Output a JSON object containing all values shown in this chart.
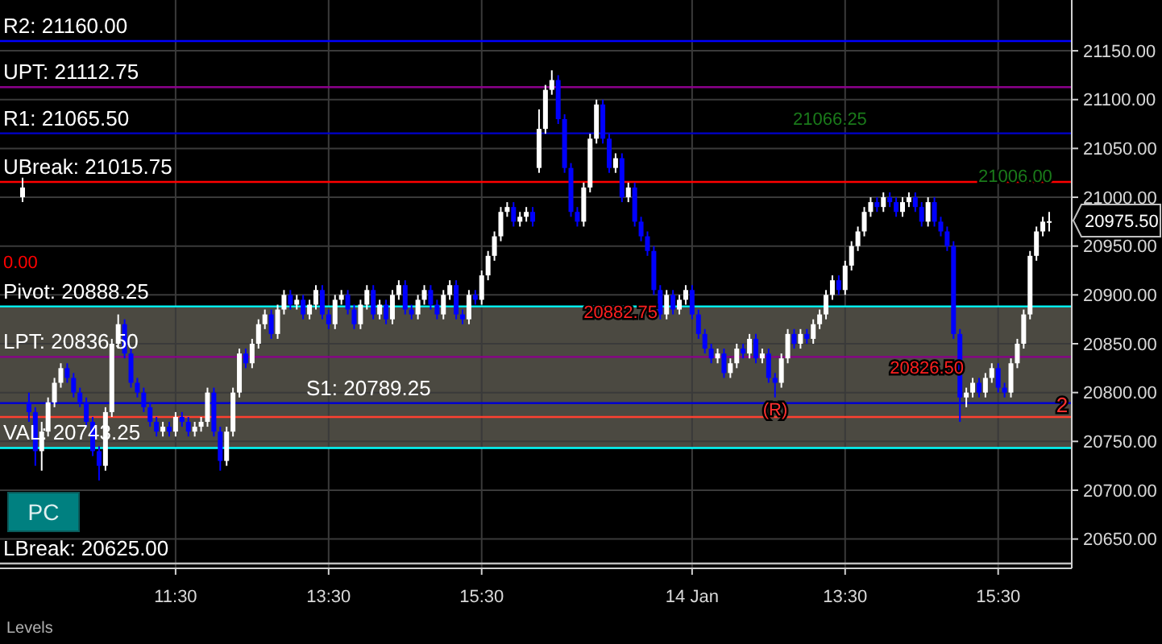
{
  "chart_data": {
    "type": "candlestick",
    "categories": [
      null,
      null,
      null,
      null,
      null,
      null,
      null,
      null,
      null,
      null,
      null,
      null,
      null,
      null,
      null,
      null,
      null,
      null,
      null,
      null,
      null,
      null,
      null,
      null,
      "11:30",
      null,
      null,
      null,
      null,
      null,
      null,
      null,
      null,
      null,
      null,
      null,
      null,
      null,
      null,
      null,
      null,
      null,
      null,
      null,
      null,
      null,
      null,
      null,
      "13:30",
      null,
      null,
      null,
      null,
      null,
      null,
      null,
      null,
      null,
      null,
      null,
      null,
      null,
      null,
      null,
      null,
      null,
      null,
      null,
      null,
      null,
      null,
      null,
      "15:30",
      null,
      null,
      null,
      null,
      null,
      null,
      null,
      null,
      null,
      null,
      null,
      null,
      null,
      null,
      null,
      null,
      null,
      null,
      null,
      null,
      null,
      null,
      null,
      null,
      null,
      null,
      null,
      null,
      null,
      null,
      null,
      null,
      "14 Jan",
      null,
      null,
      null,
      null,
      null,
      null,
      null,
      null,
      null,
      null,
      null,
      null,
      null,
      null,
      null,
      null,
      null,
      null,
      null,
      null,
      null,
      null,
      null,
      "13:30",
      null,
      null,
      null,
      null,
      null,
      null,
      null,
      null,
      null,
      null,
      null,
      null,
      null,
      null,
      null,
      null,
      null,
      null,
      null,
      null,
      null,
      null,
      null,
      "15:30",
      null,
      null,
      null,
      null,
      null,
      null,
      null,
      null
    ],
    "ohlc": [
      [
        21000,
        21020,
        20995,
        21010
      ],
      [
        20790,
        20800,
        20770,
        20780
      ],
      [
        20780,
        20785,
        20725,
        20740
      ],
      [
        20740,
        20770,
        20720,
        20760
      ],
      [
        20760,
        20795,
        20755,
        20790
      ],
      [
        20790,
        20815,
        20785,
        20810
      ],
      [
        20810,
        20830,
        20805,
        20825
      ],
      [
        20825,
        20830,
        20810,
        20815
      ],
      [
        20815,
        20820,
        20795,
        20800
      ],
      [
        20800,
        20805,
        20785,
        20790
      ],
      [
        20790,
        20795,
        20765,
        20770
      ],
      [
        20770,
        20775,
        20735,
        20740
      ],
      [
        20740,
        20745,
        20710,
        20725
      ],
      [
        20725,
        20785,
        20720,
        20780
      ],
      [
        20780,
        20855,
        20775,
        20850
      ],
      [
        20850,
        20880,
        20845,
        20870
      ],
      [
        20870,
        20875,
        20835,
        20840
      ],
      [
        20840,
        20845,
        20805,
        20810
      ],
      [
        20810,
        20815,
        20795,
        20800
      ],
      [
        20800,
        20805,
        20780,
        20785
      ],
      [
        20785,
        20790,
        20765,
        20770
      ],
      [
        20770,
        20775,
        20755,
        20760
      ],
      [
        20760,
        20770,
        20755,
        20765
      ],
      [
        20765,
        20770,
        20755,
        20760
      ],
      [
        20760,
        20780,
        20755,
        20775
      ],
      [
        20775,
        20780,
        20765,
        20770
      ],
      [
        20770,
        20775,
        20755,
        20760
      ],
      [
        20760,
        20770,
        20755,
        20765
      ],
      [
        20765,
        20775,
        20760,
        20770
      ],
      [
        20770,
        20805,
        20765,
        20800
      ],
      [
        20800,
        20805,
        20755,
        20760
      ],
      [
        20760,
        20765,
        20720,
        20730
      ],
      [
        20730,
        20765,
        20725,
        20760
      ],
      [
        20760,
        20805,
        20755,
        20800
      ],
      [
        20800,
        20845,
        20795,
        20840
      ],
      [
        20840,
        20845,
        20825,
        20830
      ],
      [
        20830,
        20855,
        20825,
        20850
      ],
      [
        20850,
        20875,
        20845,
        20870
      ],
      [
        20870,
        20885,
        20865,
        20880
      ],
      [
        20880,
        20885,
        20855,
        20860
      ],
      [
        20860,
        20890,
        20855,
        20885
      ],
      [
        20885,
        20905,
        20880,
        20900
      ],
      [
        20900,
        20905,
        20885,
        20890
      ],
      [
        20890,
        20900,
        20885,
        20895
      ],
      [
        20895,
        20900,
        20875,
        20880
      ],
      [
        20880,
        20895,
        20875,
        20890
      ],
      [
        20890,
        20910,
        20885,
        20905
      ],
      [
        20905,
        20910,
        20875,
        20880
      ],
      [
        20880,
        20885,
        20865,
        20870
      ],
      [
        20870,
        20900,
        20865,
        20895
      ],
      [
        20895,
        20905,
        20890,
        20900
      ],
      [
        20900,
        20905,
        20880,
        20885
      ],
      [
        20885,
        20890,
        20865,
        20870
      ],
      [
        20870,
        20895,
        20865,
        20890
      ],
      [
        20890,
        20910,
        20885,
        20905
      ],
      [
        20905,
        20910,
        20875,
        20880
      ],
      [
        20880,
        20895,
        20875,
        20890
      ],
      [
        20890,
        20895,
        20870,
        20875
      ],
      [
        20875,
        20905,
        20870,
        20900
      ],
      [
        20900,
        20915,
        20895,
        20910
      ],
      [
        20910,
        20915,
        20880,
        20885
      ],
      [
        20885,
        20890,
        20875,
        20880
      ],
      [
        20880,
        20900,
        20875,
        20895
      ],
      [
        20895,
        20910,
        20890,
        20905
      ],
      [
        20905,
        20910,
        20885,
        20890
      ],
      [
        20890,
        20895,
        20875,
        20880
      ],
      [
        20880,
        20905,
        20875,
        20900
      ],
      [
        20900,
        20915,
        20895,
        20910
      ],
      [
        20910,
        20915,
        20875,
        20880
      ],
      [
        20880,
        20885,
        20870,
        20875
      ],
      [
        20875,
        20905,
        20870,
        20900
      ],
      [
        20900,
        20905,
        20890,
        20895
      ],
      [
        20895,
        20925,
        20890,
        20920
      ],
      [
        20920,
        20945,
        20915,
        20940
      ],
      [
        20940,
        20965,
        20935,
        20960
      ],
      [
        20960,
        20990,
        20955,
        20985
      ],
      [
        20985,
        20995,
        20980,
        20990
      ],
      [
        20990,
        20995,
        20970,
        20975
      ],
      [
        20975,
        20985,
        20970,
        20980
      ],
      [
        20980,
        20990,
        20975,
        20985
      ],
      [
        20985,
        20990,
        20970,
        20975
      ],
      [
        21030,
        21090,
        21025,
        21070
      ],
      [
        21070,
        21115,
        21065,
        21110
      ],
      [
        21110,
        21130,
        21105,
        21120
      ],
      [
        21120,
        21125,
        21075,
        21080
      ],
      [
        21080,
        21085,
        21025,
        21030
      ],
      [
        21030,
        21035,
        20980,
        20985
      ],
      [
        20985,
        20990,
        20970,
        20975
      ],
      [
        20975,
        21015,
        20970,
        21010
      ],
      [
        21010,
        21065,
        21005,
        21060
      ],
      [
        21060,
        21100,
        21055,
        21095
      ],
      [
        21095,
        21100,
        21055,
        21060
      ],
      [
        21060,
        21065,
        21025,
        21030
      ],
      [
        21030,
        21045,
        21025,
        21040
      ],
      [
        21040,
        21045,
        20995,
        21000
      ],
      [
        21000,
        21015,
        20995,
        21010
      ],
      [
        21010,
        21015,
        20970,
        20975
      ],
      [
        20975,
        20980,
        20955,
        20960
      ],
      [
        20960,
        20965,
        20940,
        20945
      ],
      [
        20945,
        20950,
        20900,
        20905
      ],
      [
        20905,
        20910,
        20875,
        20880
      ],
      [
        20880,
        20905,
        20875,
        20900
      ],
      [
        20900,
        20905,
        20880,
        20885
      ],
      [
        20885,
        20900,
        20880,
        20895
      ],
      [
        20895,
        20910,
        20890,
        20905
      ],
      [
        20905,
        20910,
        20875,
        20880
      ],
      [
        20880,
        20885,
        20855,
        20860
      ],
      [
        20860,
        20865,
        20840,
        20845
      ],
      [
        20845,
        20850,
        20830,
        20835
      ],
      [
        20835,
        20845,
        20830,
        20840
      ],
      [
        20840,
        20845,
        20815,
        20820
      ],
      [
        20820,
        20835,
        20815,
        20830
      ],
      [
        20830,
        20850,
        20825,
        20845
      ],
      [
        20845,
        20850,
        20835,
        20840
      ],
      [
        20840,
        20860,
        20835,
        20855
      ],
      [
        20855,
        20860,
        20830,
        20835
      ],
      [
        20835,
        20845,
        20830,
        20840
      ],
      [
        20840,
        20845,
        20810,
        20815
      ],
      [
        20815,
        20820,
        20795,
        20810
      ],
      [
        20810,
        20840,
        20805,
        20835
      ],
      [
        20835,
        20865,
        20830,
        20860
      ],
      [
        20860,
        20865,
        20845,
        20850
      ],
      [
        20850,
        20865,
        20845,
        20860
      ],
      [
        20860,
        20865,
        20850,
        20855
      ],
      [
        20855,
        20875,
        20850,
        20870
      ],
      [
        20870,
        20885,
        20865,
        20880
      ],
      [
        20880,
        20905,
        20875,
        20900
      ],
      [
        20900,
        20920,
        20895,
        20915
      ],
      [
        20915,
        20920,
        20900,
        20905
      ],
      [
        20905,
        20935,
        20900,
        20930
      ],
      [
        20930,
        20955,
        20925,
        20950
      ],
      [
        20950,
        20970,
        20945,
        20965
      ],
      [
        20965,
        20990,
        20960,
        20985
      ],
      [
        20985,
        21000,
        20980,
        20995
      ],
      [
        20995,
        21000,
        20985,
        20990
      ],
      [
        20990,
        21005,
        20985,
        21000
      ],
      [
        21000,
        21005,
        20990,
        20995
      ],
      [
        20995,
        21000,
        20980,
        20985
      ],
      [
        20985,
        21000,
        20980,
        20995
      ],
      [
        20995,
        21005,
        20990,
        21000
      ],
      [
        21000,
        21005,
        20985,
        20990
      ],
      [
        20990,
        20995,
        20970,
        20975
      ],
      [
        20975,
        21000,
        20970,
        20995
      ],
      [
        20995,
        21000,
        20970,
        20975
      ],
      [
        20975,
        20980,
        20960,
        20965
      ],
      [
        20965,
        20970,
        20945,
        20950
      ],
      [
        20950,
        20955,
        20855,
        20860
      ],
      [
        20860,
        20865,
        20770,
        20795
      ],
      [
        20795,
        20805,
        20785,
        20800
      ],
      [
        20800,
        20815,
        20795,
        20810
      ],
      [
        20810,
        20815,
        20795,
        20800
      ],
      [
        20800,
        20820,
        20795,
        20815
      ],
      [
        20815,
        20830,
        20810,
        20825
      ],
      [
        20825,
        20830,
        20800,
        20805
      ],
      [
        20805,
        20810,
        20795,
        20800
      ],
      [
        20800,
        20835,
        20795,
        20830
      ],
      [
        20830,
        20855,
        20825,
        20850
      ],
      [
        20850,
        20885,
        20845,
        20880
      ],
      [
        20880,
        20945,
        20875,
        20940
      ],
      [
        20940,
        20970,
        20935,
        20965
      ],
      [
        20965,
        20980,
        20960,
        20975
      ],
      [
        20975,
        20985,
        20965,
        20975.5
      ]
    ],
    "ylim": [
      20620,
      21202
    ],
    "yticks": [
      {
        "value": 20650,
        "label": "20650.00"
      },
      {
        "value": 20700,
        "label": "20700.00"
      },
      {
        "value": 20750,
        "label": "20750.00"
      },
      {
        "value": 20800,
        "label": "20800.00"
      },
      {
        "value": 20850,
        "label": "20850.00"
      },
      {
        "value": 20900,
        "label": "20900.00"
      },
      {
        "value": 20950,
        "label": "20950.00"
      },
      {
        "value": 21000,
        "label": "21000.00"
      },
      {
        "value": 21050,
        "label": "21050.00"
      },
      {
        "value": 21100,
        "label": "21100.00"
      },
      {
        "value": 21150,
        "label": "21150.00"
      }
    ],
    "grid": true,
    "bands": [
      {
        "axis": "y",
        "from": 20743.25,
        "to": 20888.25,
        "color": "#4f4d45"
      }
    ],
    "ref_lines": [
      {
        "axis": "y",
        "value": 21160,
        "label": "R2: 21160.00",
        "color": "#0000ff"
      },
      {
        "axis": "y",
        "value": 21112.75,
        "label": "UPT: 21112.75",
        "color": "#8b008b"
      },
      {
        "axis": "y",
        "value": 21065.5,
        "label": "R1: 21065.50",
        "color": "#0000cd"
      },
      {
        "axis": "y",
        "value": 21015.75,
        "label": "UBreak: 21015.75",
        "color": "#ff0000"
      },
      {
        "axis": "y",
        "value": 20888.25,
        "label": "Pivot: 20888.25",
        "color": "#00ffff"
      },
      {
        "axis": "y",
        "value": 20836.5,
        "label": "LPT: 20836.50",
        "color": "#8b008b"
      },
      {
        "axis": "y",
        "value": 20789.25,
        "label": "S1: 20789.25",
        "color": "#0000cd"
      },
      {
        "axis": "y",
        "value": 20743.25,
        "label": "VAL: 20743.25",
        "color": "#00ffff"
      },
      {
        "axis": "y",
        "value": 20625,
        "label": "LBreak: 20625.00",
        "color": "#c0c0c0"
      },
      {
        "axis": "y",
        "value": 20775,
        "color": "#ff4030"
      }
    ],
    "annotations": [
      "0.00",
      {
        "text": "21066.25",
        "y": 21066.25
      },
      "21006.00",
      {
        "text": "20882.75",
        "y": 20882.75
      },
      "20826.50",
      {
        "text": "(R)",
        "y": 20785
      },
      {
        "text": "2",
        "y": 20775
      },
      "PC",
      "Levels",
      "20975.50"
    ]
  }
}
